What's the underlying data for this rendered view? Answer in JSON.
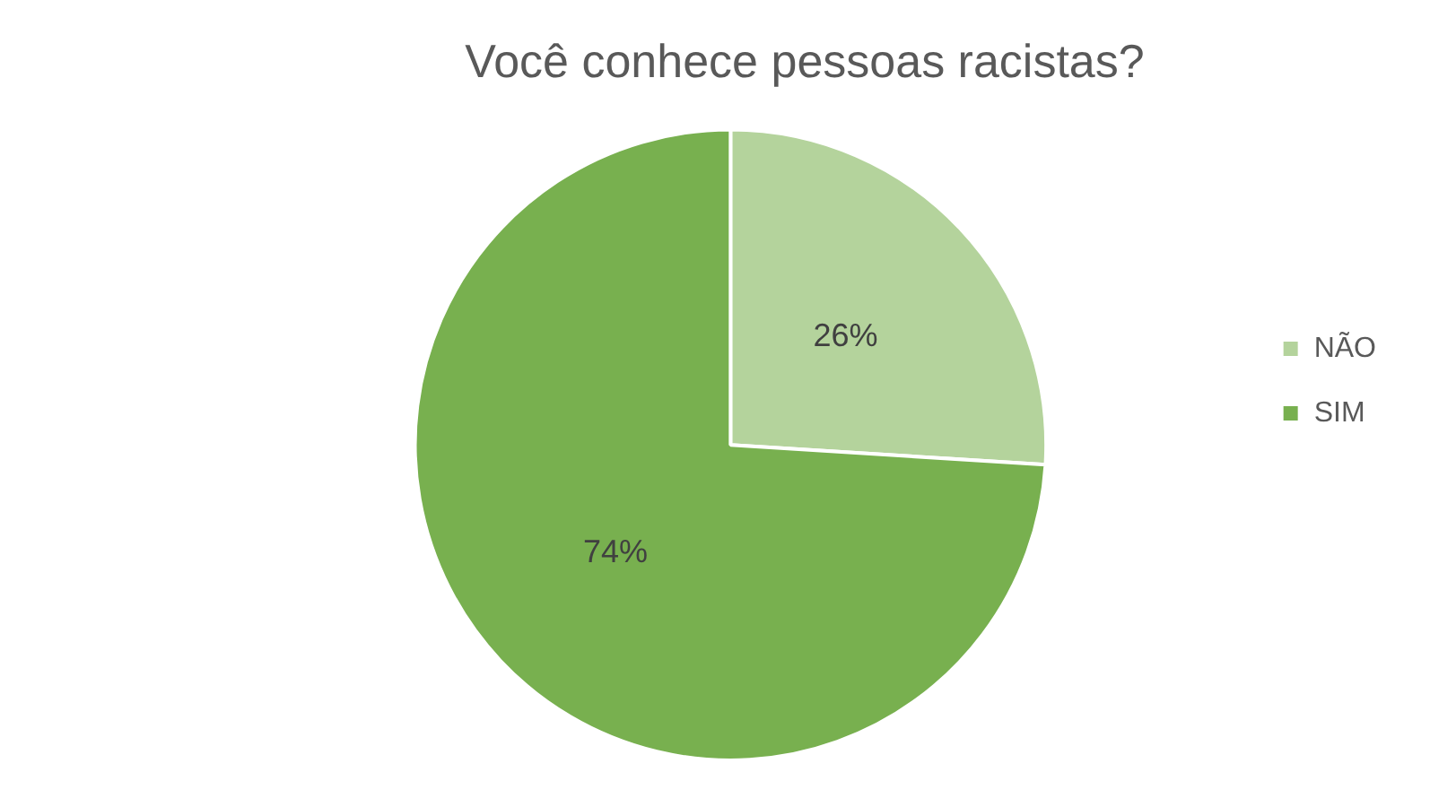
{
  "chart_data": {
    "type": "pie",
    "title": "Você conhece pessoas racistas?",
    "categories": [
      "NÃO",
      "SIM"
    ],
    "values": [
      26,
      74
    ],
    "value_labels": [
      "26%",
      "74%"
    ],
    "colors": [
      "#b4d39c",
      "#78b04f"
    ],
    "legend": "right"
  }
}
